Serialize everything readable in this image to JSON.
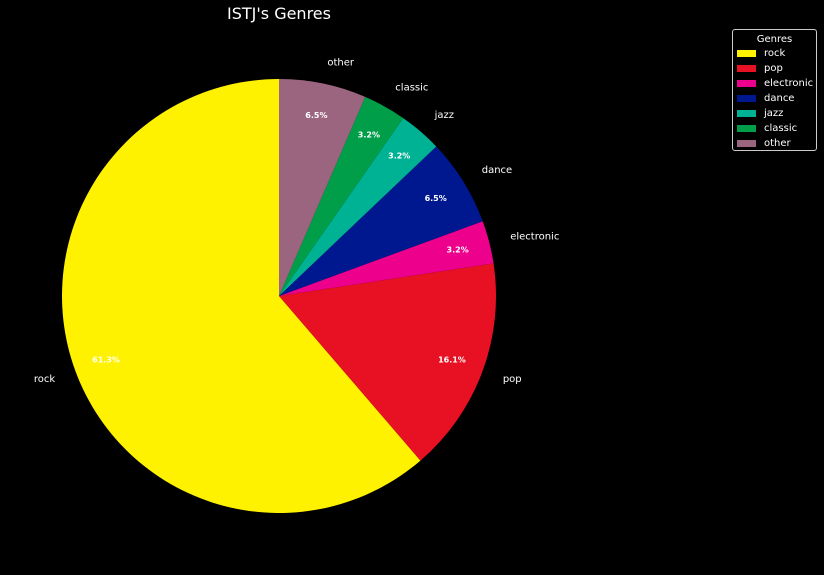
{
  "chart_data": {
    "type": "pie",
    "title": "ISTJ's Genres",
    "categories": [
      "rock",
      "pop",
      "electronic",
      "dance",
      "jazz",
      "classic",
      "other"
    ],
    "values": [
      61.3,
      16.1,
      3.2,
      6.5,
      3.2,
      3.2,
      6.5
    ],
    "percent_labels": [
      "61.3%",
      "16.1%",
      "3.2%",
      "6.5%",
      "3.2%",
      "3.2%",
      "6.5%"
    ],
    "colors": [
      "#fff200",
      "#e81123",
      "#ec008c",
      "#00188f",
      "#00b294",
      "#009e49",
      "#9b6580"
    ],
    "legend": {
      "title": "Genres",
      "placement": "top-right"
    }
  }
}
